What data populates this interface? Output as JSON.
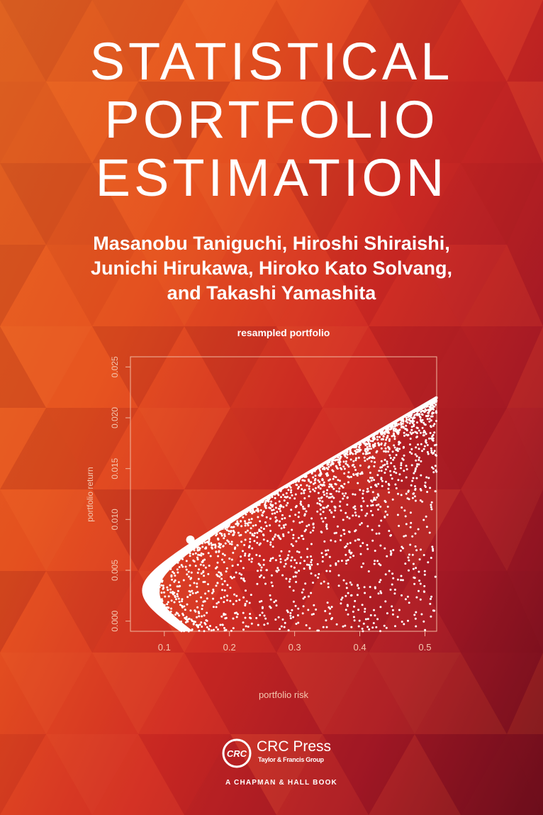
{
  "cover": {
    "title_lines": [
      "STATISTICAL",
      "PORTFOLIO",
      "ESTIMATION"
    ],
    "author_lines": [
      "Masanobu Taniguchi, Hiroshi Shiraishi,",
      "Junichi Hirukawa, Hiroko Kato Solvang,",
      "and Takashi Yamashita"
    ],
    "colors": {
      "background_light": "#e86a22",
      "background_dark": "#6e0f1c",
      "text": "#ffffff"
    }
  },
  "publisher": {
    "logo_text": "CRC",
    "name": "CRC Press",
    "group": "Taylor & Francis Group",
    "imprint": "A CHAPMAN & HALL BOOK"
  },
  "chart_data": {
    "type": "scatter",
    "title": "resampled portfolio",
    "xlabel": "portfolio risk",
    "ylabel": "portfolio return",
    "xlim": [
      0.048,
      0.518
    ],
    "ylim": [
      -0.001,
      0.026
    ],
    "xticks": [
      "0.1",
      "0.2",
      "0.3",
      "0.4",
      "0.5"
    ],
    "yticks": [
      "0.000",
      "0.005",
      "0.010",
      "0.015",
      "0.020",
      "0.025"
    ],
    "frontier": {
      "min_risk": 0.068,
      "min_risk_return": 0.003,
      "end_risk": 0.518,
      "end_return": 0.022
    },
    "marked_point": {
      "x": 0.14,
      "y": 0.008
    },
    "grid": false,
    "point_color": "#ffffff"
  }
}
